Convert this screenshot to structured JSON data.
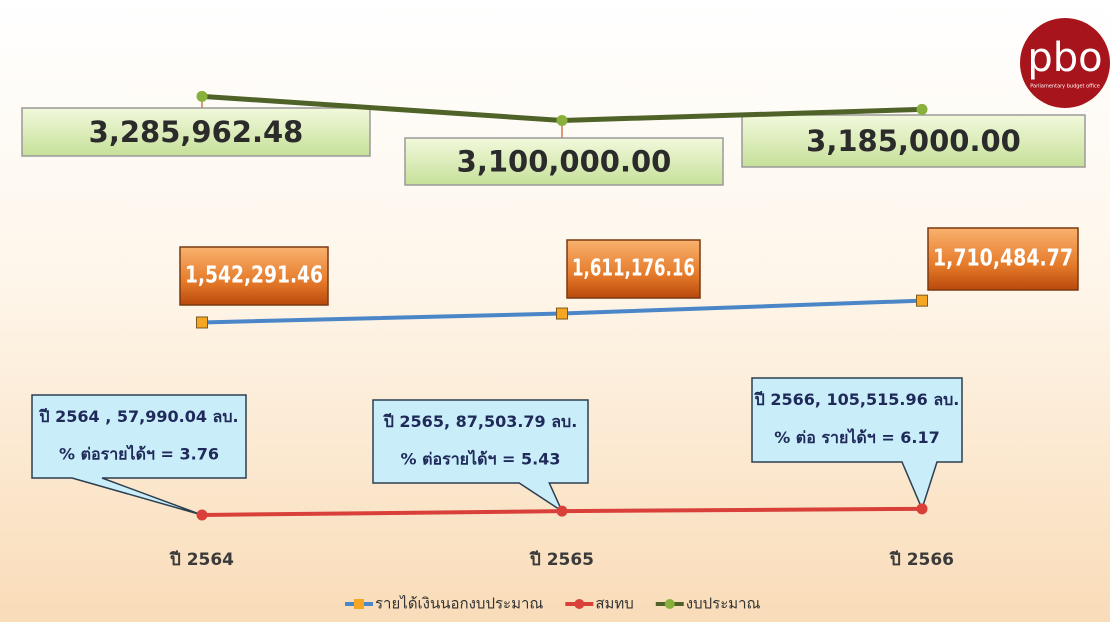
{
  "chart_data": {
    "type": "line",
    "categories": [
      "ปี 2564",
      "ปี 2565",
      "ปี 2566"
    ],
    "ylim": [
      0,
      3300000
    ],
    "series": [
      {
        "name": "รายได้เงินนอกงบประมาณ",
        "color": "#4a86c8",
        "marker_color": "#f5a623",
        "values": [
          1542291.46,
          1611176.16,
          1710484.77
        ],
        "value_labels": [
          "1,542,291.46",
          "1,611,176.16",
          "1,710,484.77"
        ]
      },
      {
        "name": "สมทบ",
        "color": "#d9403a",
        "marker_color": "#d9403a",
        "values": [
          57990.04,
          87503.79,
          105515.96
        ],
        "value_labels": [
          "ปี 2564 , 57,990.04 ลบ.",
          "ปี 2565, 87,503.79 ลบ.",
          "ปี 2566, 105,515.96  ลบ."
        ],
        "ratio_labels": [
          "% ต่อรายได้ฯ = 3.76",
          "% ต่อรายได้ฯ = 5.43",
          "% ต่อ รายได้ฯ = 6.17"
        ]
      },
      {
        "name": "งบประมาณ",
        "color": "#4f6228",
        "marker_color": "#8ab03c",
        "values": [
          3285962.48,
          3100000.0,
          3185000.0
        ],
        "value_labels": [
          "3,285,962.48",
          "3,100,000.00",
          "3,185,000.00"
        ]
      }
    ],
    "legend": "bottom",
    "logo": {
      "text": "pbo",
      "subtitle": "Parliamentary budget office"
    }
  }
}
